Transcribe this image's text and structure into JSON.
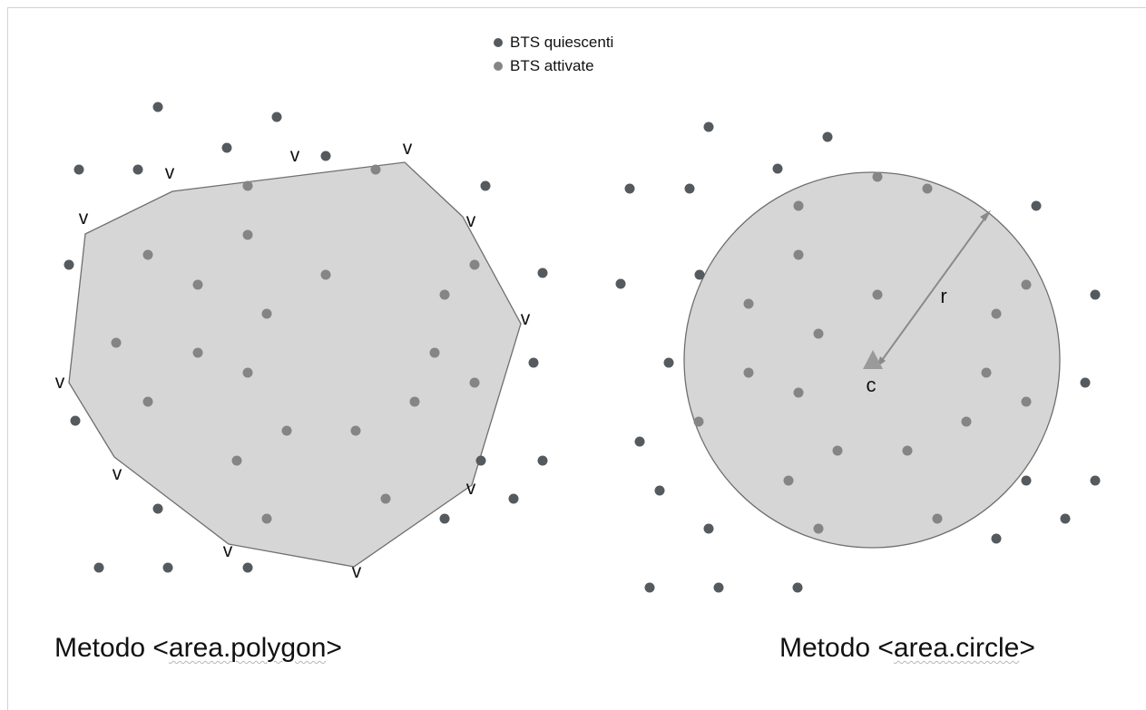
{
  "legend": [
    {
      "label": "BTS quiescenti",
      "color": "#555a5f"
    },
    {
      "label": "BTS attivate",
      "color": "#858585"
    }
  ],
  "polygon_panel": {
    "vertex_label": "v",
    "caption_prefix": "Metodo <",
    "caption_method": "area.polygon",
    "caption_suffix": ">"
  },
  "circle_panel": {
    "center_label": "c",
    "radius_label": "r",
    "caption_prefix": "Metodo <",
    "caption_method": "area.circle",
    "caption_suffix": ">"
  },
  "colors": {
    "fill": "#d6d6d6",
    "outline": "#6f6f6f",
    "quiescent": "#555a5f",
    "active": "#858585",
    "center_marker": "#9a9a9a"
  }
}
